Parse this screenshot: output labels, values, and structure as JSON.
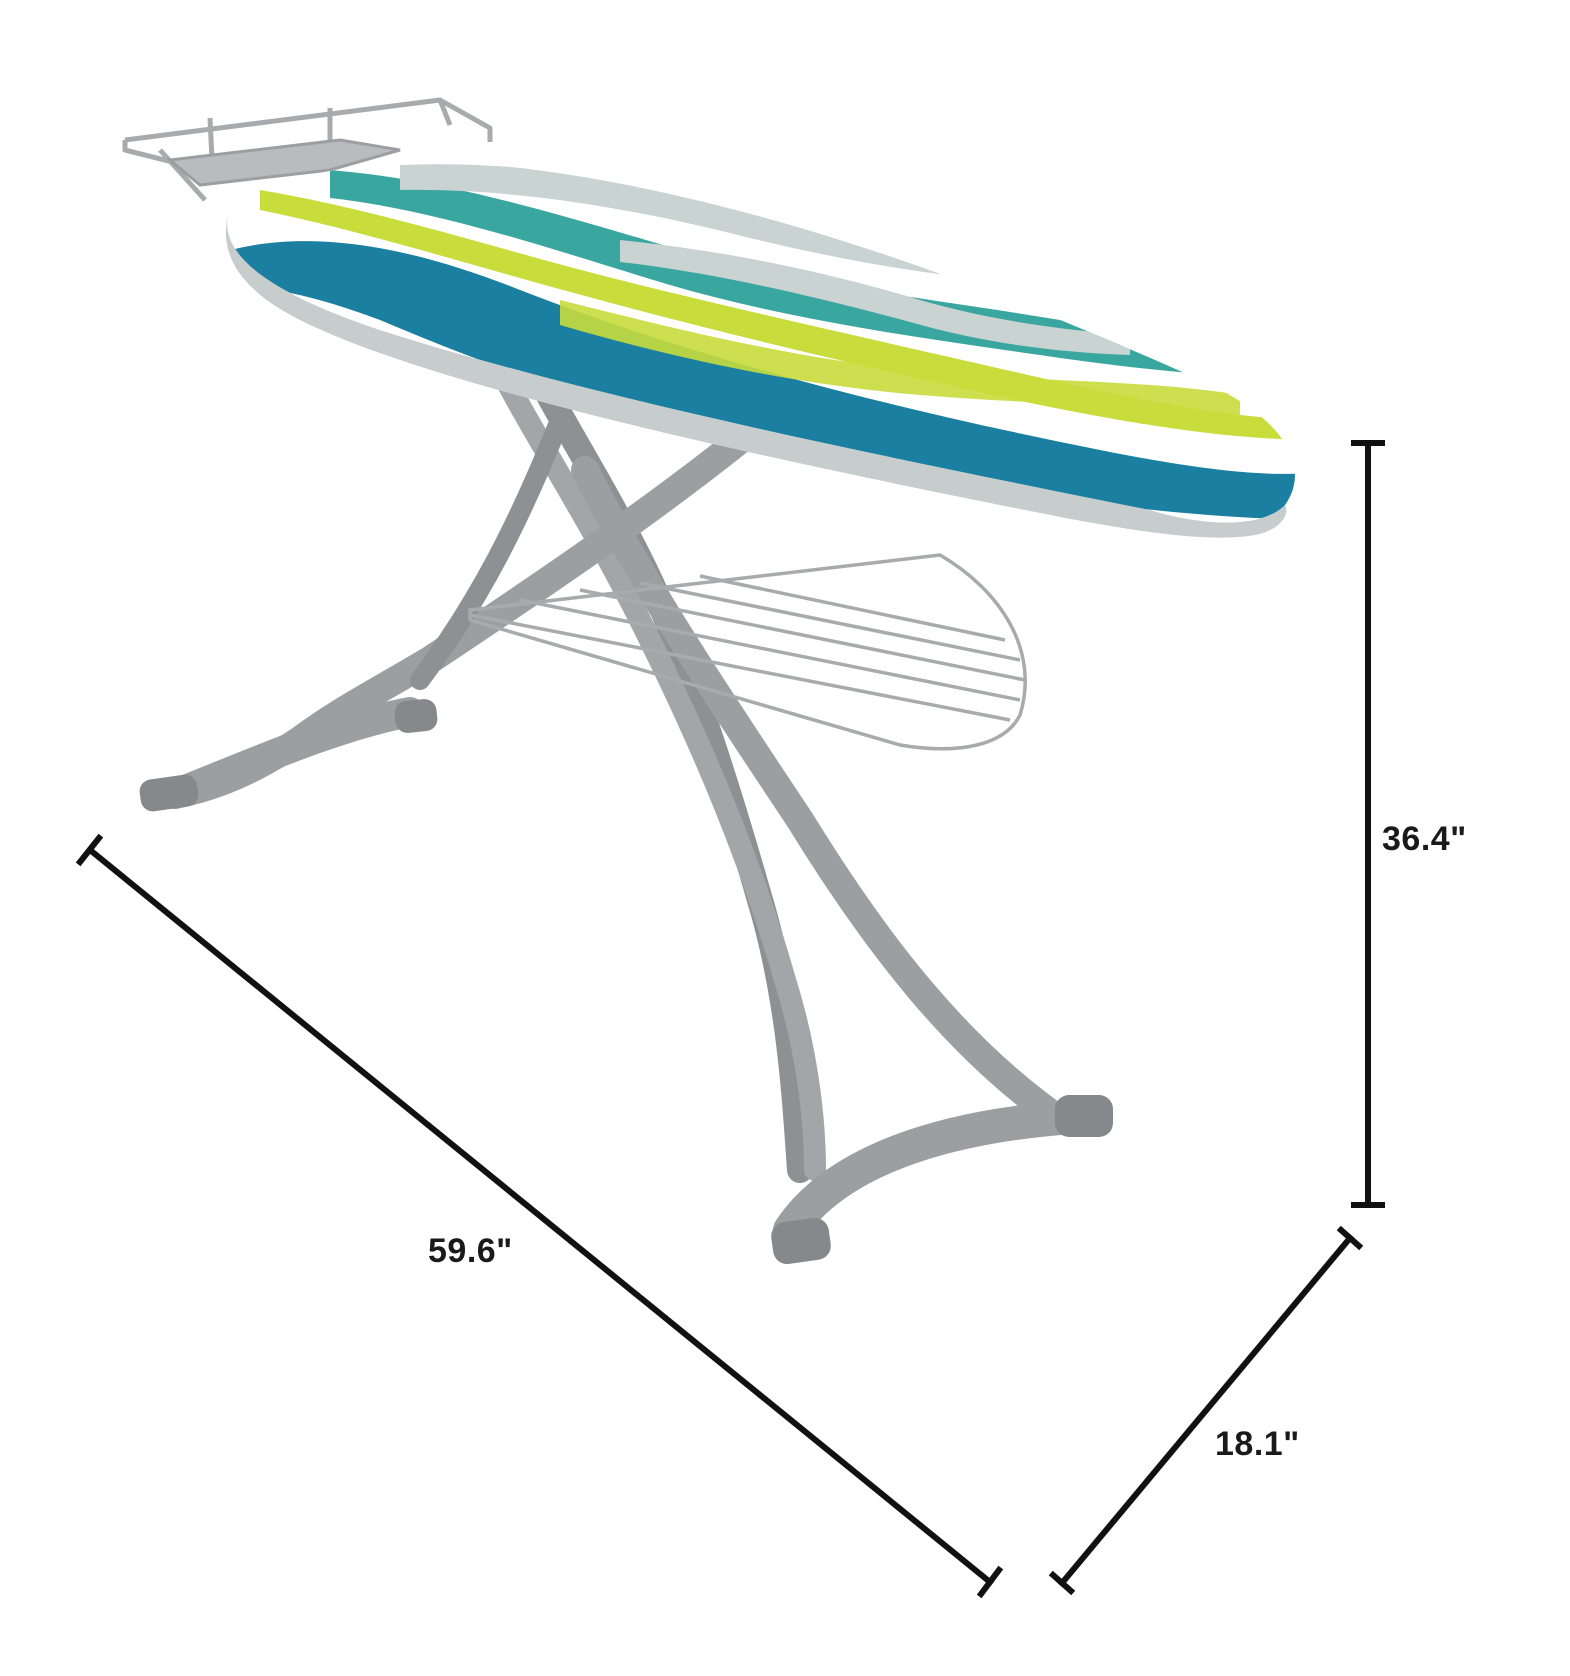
{
  "dimensions": {
    "height": "36.4\"",
    "length": "59.6\"",
    "depth": "18.1\""
  },
  "colors": {
    "frame": "#9c9ea1",
    "frame_dark": "#7e8084",
    "foot_cap": "#8a8c90",
    "wire": "#a8aaad",
    "cover_base": "#ffffff",
    "stripe_teal": "#3aa6a0",
    "stripe_blue": "#1a7fa0",
    "stripe_lime": "#c8dc3c",
    "stripe_grey": "#c9d3d2",
    "dimension_line": "#111111"
  }
}
